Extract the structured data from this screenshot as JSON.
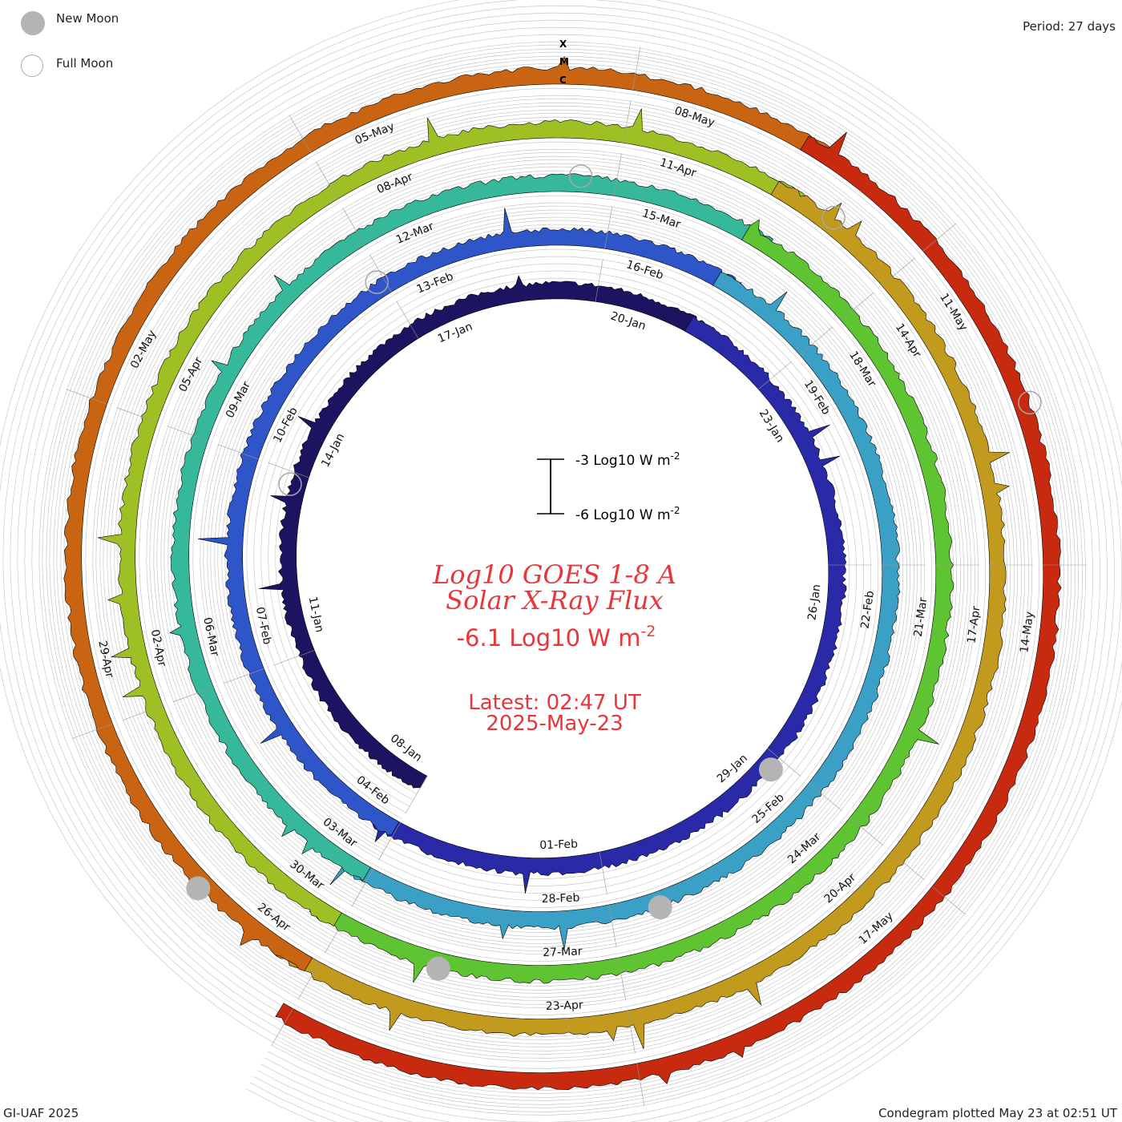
{
  "legend": {
    "new_moon": "New Moon",
    "full_moon": "Full Moon"
  },
  "period_label": "Period: 27 days",
  "credit": "GI-UAF 2025",
  "plotted": "Condegram plotted May 23 at 02:51 UT",
  "center": {
    "title_line1": "Log10 GOES 1-8 A",
    "title_line2": "Solar X-Ray Flux",
    "current_value": "-6.1 Log10 W m",
    "current_exp": "-2",
    "latest": "Latest: 02:47 UT",
    "date": "2025-May-23"
  },
  "scale_bar": {
    "top": "-3 Log10 W m",
    "top_exp": "-2",
    "bottom": "-6 Log10 W m",
    "bottom_exp": "-2"
  },
  "class_labels": [
    "X",
    "M",
    "C"
  ],
  "colors": {
    "title": "#e8363a",
    "grid": "#c8c8c8",
    "ring_colors": [
      "#1c1460",
      "#2a2aa8",
      "#2f56c9",
      "#3aa0c6",
      "#36b89a",
      "#5fc432",
      "#9ec024",
      "#c29a1e",
      "#c96412",
      "#c82a10"
    ],
    "new_moon": "#b4b4b4",
    "full_moon": "#a8a8a8"
  },
  "chart_data": {
    "type": "polar-condegram",
    "period_days": 27,
    "start_date": "2025-01-08",
    "end_date": "2025-05-23",
    "baseline_log_flux": -6.1,
    "date_labels": [
      {
        "label": "08-Jan",
        "day": 0
      },
      {
        "label": "11-Jan",
        "day": 3
      },
      {
        "label": "14-Jan",
        "day": 6
      },
      {
        "label": "17-Jan",
        "day": 9
      },
      {
        "label": "20-Jan",
        "day": 12
      },
      {
        "label": "23-Jan",
        "day": 15
      },
      {
        "label": "26-Jan",
        "day": 18
      },
      {
        "label": "29-Jan",
        "day": 21
      },
      {
        "label": "01-Feb",
        "day": 24
      },
      {
        "label": "04-Feb",
        "day": 27
      },
      {
        "label": "07-Feb",
        "day": 30
      },
      {
        "label": "10-Feb",
        "day": 33
      },
      {
        "label": "13-Feb",
        "day": 36
      },
      {
        "label": "16-Feb",
        "day": 39
      },
      {
        "label": "19-Feb",
        "day": 42
      },
      {
        "label": "22-Feb",
        "day": 45
      },
      {
        "label": "25-Feb",
        "day": 48
      },
      {
        "label": "28-Feb",
        "day": 51
      },
      {
        "label": "03-Mar",
        "day": 54
      },
      {
        "label": "06-Mar",
        "day": 57
      },
      {
        "label": "09-Mar",
        "day": 60
      },
      {
        "label": "12-Mar",
        "day": 63
      },
      {
        "label": "15-Mar",
        "day": 66
      },
      {
        "label": "18-Mar",
        "day": 69
      },
      {
        "label": "21-Mar",
        "day": 72
      },
      {
        "label": "24-Mar",
        "day": 75
      },
      {
        "label": "27-Mar",
        "day": 78
      },
      {
        "label": "30-Mar",
        "day": 81
      },
      {
        "label": "02-Apr",
        "day": 84
      },
      {
        "label": "05-Apr",
        "day": 87
      },
      {
        "label": "08-Apr",
        "day": 90
      },
      {
        "label": "11-Apr",
        "day": 93
      },
      {
        "label": "14-Apr",
        "day": 96
      },
      {
        "label": "17-Apr",
        "day": 99
      },
      {
        "label": "20-Apr",
        "day": 102
      },
      {
        "label": "23-Apr",
        "day": 105
      },
      {
        "label": "26-Apr",
        "day": 108
      },
      {
        "label": "29-Apr",
        "day": 111
      },
      {
        "label": "02-May",
        "day": 114
      },
      {
        "label": "05-May",
        "day": 117
      },
      {
        "label": "08-May",
        "day": 120
      },
      {
        "label": "11-May",
        "day": 123
      },
      {
        "label": "14-May",
        "day": 126
      },
      {
        "label": "17-May",
        "day": 129
      }
    ],
    "new_moons": [
      21.2,
      50.4,
      79.9,
      109.3
    ],
    "full_moons": [
      5.8,
      35.9,
      65.6,
      95.2,
      124.6
    ]
  }
}
